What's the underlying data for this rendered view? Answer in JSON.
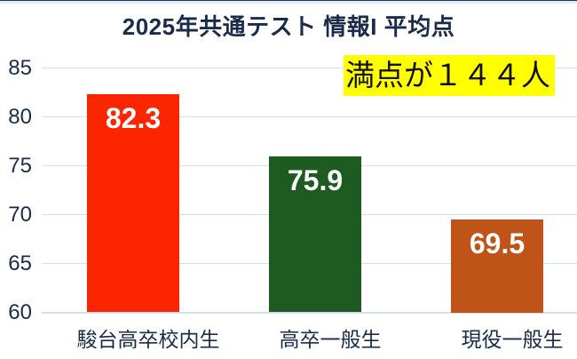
{
  "page": {
    "background": "#ffffff",
    "top_edge_color": "#22335a",
    "top_strip_color": "#e3edf8"
  },
  "chart_data": {
    "type": "bar",
    "title": "2025年共通テスト 情報I 平均点",
    "title_color": "#1a2b4c",
    "categories": [
      "駿台高卒校内生",
      "高卒一般生",
      "現役一般生"
    ],
    "values": [
      82.3,
      75.9,
      69.5
    ],
    "value_labels": [
      "82.3",
      "75.9",
      "69.5"
    ],
    "value_label_color": "#ffffff",
    "bar_colors": [
      "#fb2500",
      "#1d5b21",
      "#c05317"
    ],
    "ylim": [
      60,
      85
    ],
    "yticks": [
      60,
      65,
      70,
      75,
      80,
      85
    ],
    "ytick_labels": [
      "60",
      "65",
      "70",
      "75",
      "80",
      "85"
    ],
    "axis_label_color": "#1a2b4c",
    "grid": true,
    "gridline_color": "#cfe0f0",
    "legend": "none",
    "xlabel": "",
    "ylabel": "",
    "annotation": {
      "text": "満点が１４４人",
      "background": "#ffff00",
      "color": "#111111"
    }
  }
}
